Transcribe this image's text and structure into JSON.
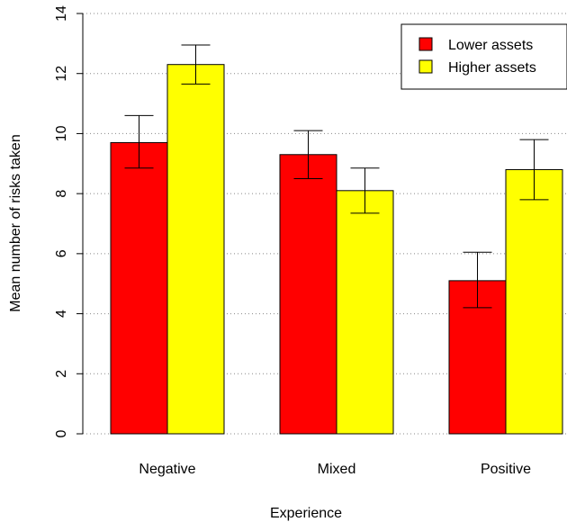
{
  "chart_data": {
    "type": "bar",
    "xlabel": "Experience",
    "ylabel": "Mean number of risks taken",
    "ylim": [
      0,
      14
    ],
    "yticks": [
      0,
      2,
      4,
      6,
      8,
      10,
      12,
      14
    ],
    "grid": "horizontal dotted",
    "legend_position": "top-right",
    "categories": [
      "Negative",
      "Mixed",
      "Positive"
    ],
    "series": [
      {
        "name": "Lower assets",
        "color": "#ff0000",
        "values": [
          9.7,
          9.3,
          5.1
        ],
        "error_low": [
          8.85,
          8.5,
          4.2
        ],
        "error_high": [
          10.6,
          10.1,
          6.05
        ]
      },
      {
        "name": "Higher assets",
        "color": "#ffff00",
        "values": [
          12.3,
          8.1,
          8.8
        ],
        "error_low": [
          11.65,
          7.35,
          7.8
        ],
        "error_high": [
          12.95,
          8.85,
          9.8
        ]
      }
    ]
  }
}
